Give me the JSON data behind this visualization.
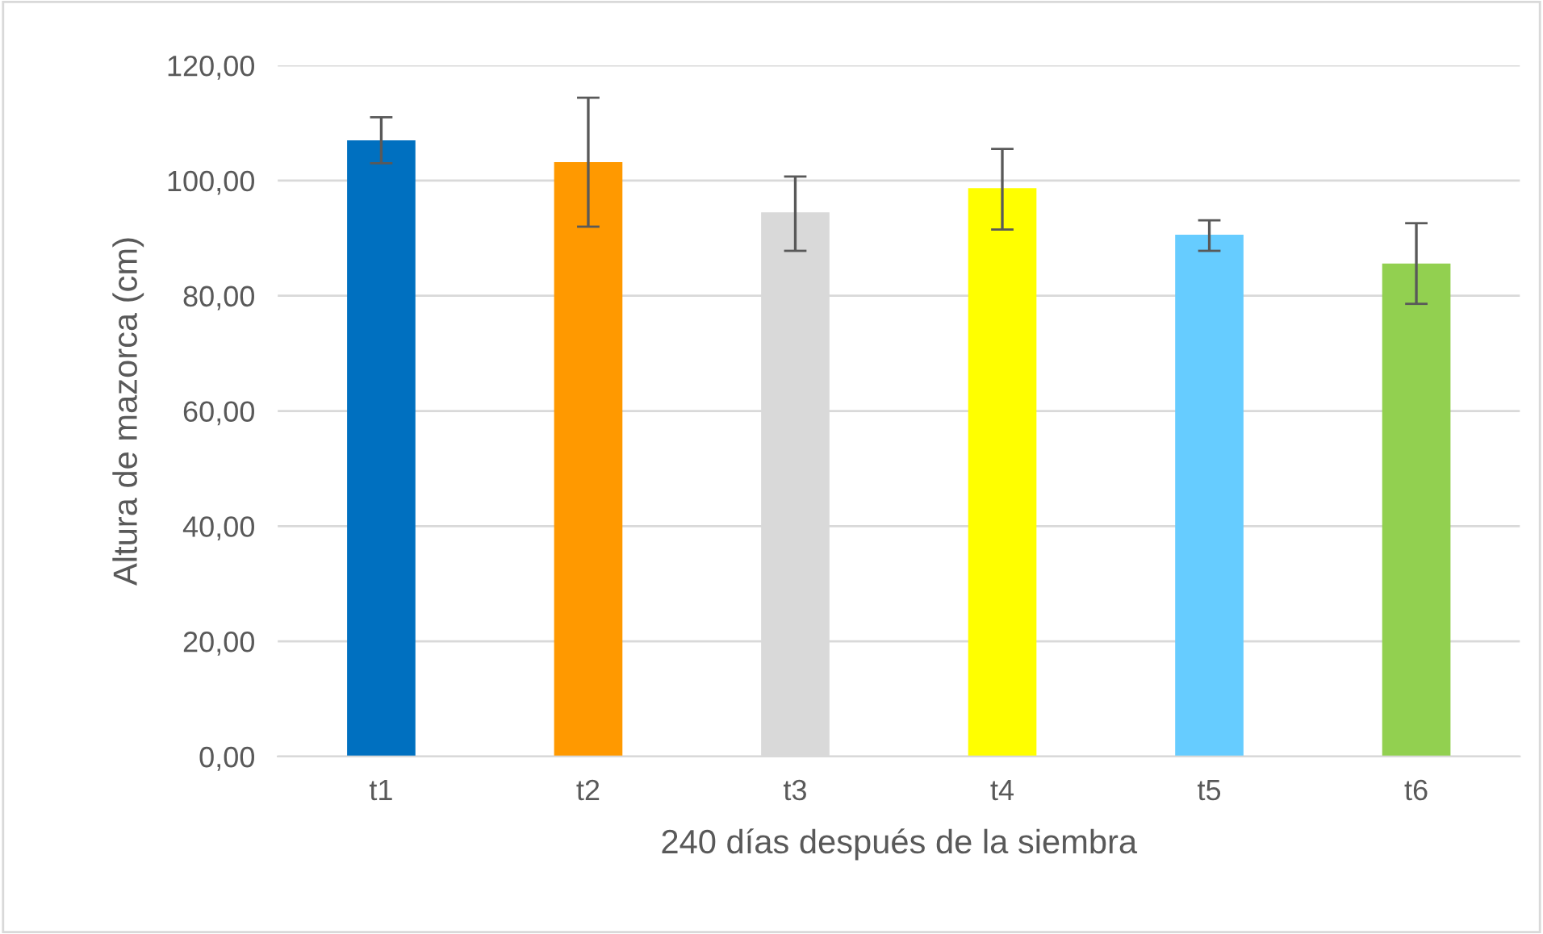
{
  "chart_data": {
    "type": "bar",
    "xlabel": "240 días después de la siembra",
    "ylabel": "Altura de mazorca (cm)",
    "categories": [
      "t1",
      "t2",
      "t3",
      "t4",
      "t5",
      "t6"
    ],
    "values": [
      107,
      103.2,
      94.5,
      98.7,
      90.6,
      85.6
    ],
    "errors": [
      [
        103,
        111
      ],
      [
        92,
        114.4
      ],
      [
        87.8,
        100.7
      ],
      [
        91.5,
        105.5
      ],
      [
        87.8,
        93.1
      ],
      [
        78.6,
        92.6
      ]
    ],
    "colors": [
      "#0070c0",
      "#ff9900",
      "#d9d9d9",
      "#ffff00",
      "#66ccff",
      "#92d050"
    ],
    "ylim": [
      0,
      120
    ],
    "yticks": [
      {
        "value": 0,
        "label": "0,00"
      },
      {
        "value": 20,
        "label": "20,00"
      },
      {
        "value": 40,
        "label": "40,00"
      },
      {
        "value": 60,
        "label": "60,00"
      },
      {
        "value": 80,
        "label": "80,00"
      },
      {
        "value": 100,
        "label": "100,00"
      },
      {
        "value": 120,
        "label": "120,00"
      }
    ],
    "grid": "y",
    "legend": false
  }
}
